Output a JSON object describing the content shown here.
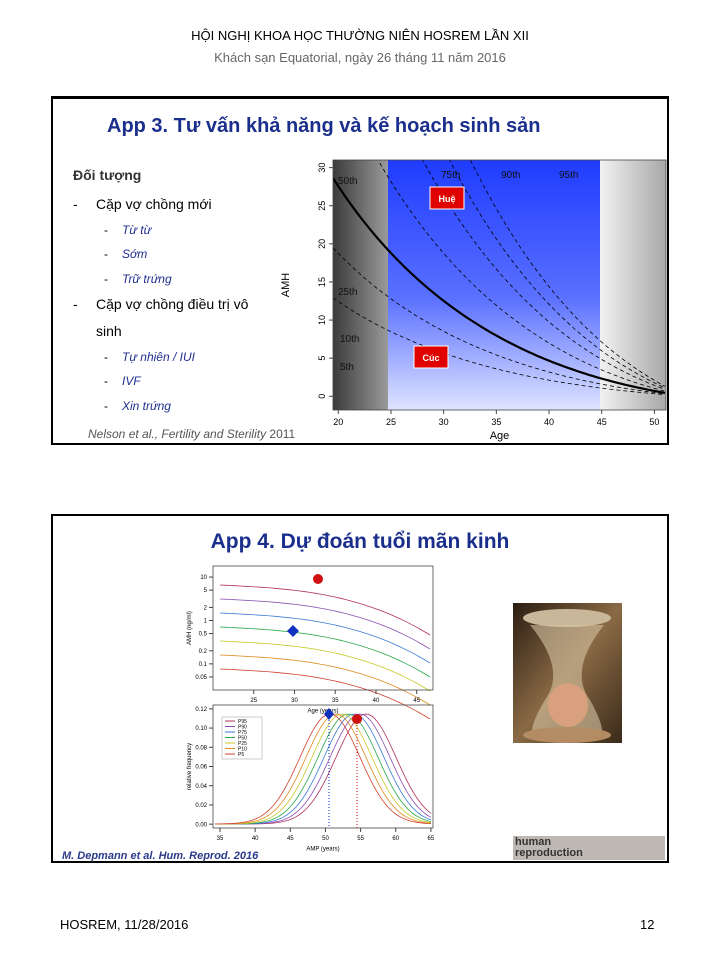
{
  "header": {
    "title": "HỘI NGHỊ KHOA HỌC THƯỜNG NIÊN HOSREM LẦN XII",
    "subtitle": "Khách sạn Equatorial, ngày 26 tháng 11 năm 2016"
  },
  "slides": [
    {
      "title": "App 3. Tư vấn khả năng và kế hoạch sinh sản",
      "list_heading": "Đối tượng",
      "bullet": "-",
      "groups": [
        {
          "label": "Cặp vợ chồng mới",
          "items": [
            "Từ từ",
            "Sớm",
            "Trữ trứng"
          ]
        },
        {
          "label": "Cặp vợ chồng điều trị vô sinh",
          "items": [
            "Tự nhiên / IUI",
            "IVF",
            "Xin trứng"
          ]
        }
      ],
      "chart": {
        "x_label": "Age",
        "y_label": "AMH",
        "xlim": [
          19.5,
          51.1
        ],
        "xticks": [
          20,
          25,
          30,
          35,
          40,
          45,
          50
        ],
        "ylim": [
          -1.8,
          31
        ],
        "yticks": [
          0,
          5,
          10,
          15,
          20,
          25,
          30
        ],
        "curve_labels": [
          "50th",
          "75th",
          "90th",
          "95th",
          "25th",
          "10th",
          "5th"
        ],
        "markers": [
          "Huệ",
          "Cúc"
        ]
      },
      "citation": {
        "text": "Nelson et al., Fertility and Sterility",
        "year": "2011"
      }
    },
    {
      "title": "App 4. Dự đoán tuổi mãn kinh",
      "top_chart": {
        "x_label": "Age (years)",
        "y_label": "AMH (ng/ml)",
        "xlim": [
          20,
          47
        ],
        "xticks": [
          25,
          30,
          35,
          40,
          45
        ],
        "ylim": [
          0.025,
          18
        ],
        "log_y": true,
        "yticks": [
          10,
          5,
          2,
          1,
          0.5,
          0.2,
          0.1,
          0.05
        ]
      },
      "bottom_chart": {
        "x_label": "AMP (years)",
        "y_label": "relative frequency",
        "xlim": [
          34,
          65.3
        ],
        "xticks": [
          35,
          40,
          45,
          50,
          55,
          60,
          65
        ],
        "ylim": [
          -0.004,
          0.124
        ],
        "yticks": [
          {
            "value": 0,
            "label": "0.00"
          },
          {
            "value": 0.02,
            "label": "0.02"
          },
          {
            "value": 0.04,
            "label": "0.04"
          },
          {
            "value": 0.06,
            "label": "0.06"
          },
          {
            "value": 0.08,
            "label": "0.08"
          },
          {
            "value": 0.1,
            "label": "0.10"
          },
          {
            "value": 0.12,
            "label": "0.12"
          }
        ],
        "legend": [
          "P95",
          "P90",
          "P75",
          "P50",
          "P25",
          "P10",
          "P5"
        ]
      },
      "logo": [
        "human",
        "reproduction"
      ],
      "citation": "M. Depmann et al. Hum. Reprod. 2016"
    }
  ],
  "footer": {
    "left": "HOSREM, 11/28/2016",
    "page": "12"
  }
}
